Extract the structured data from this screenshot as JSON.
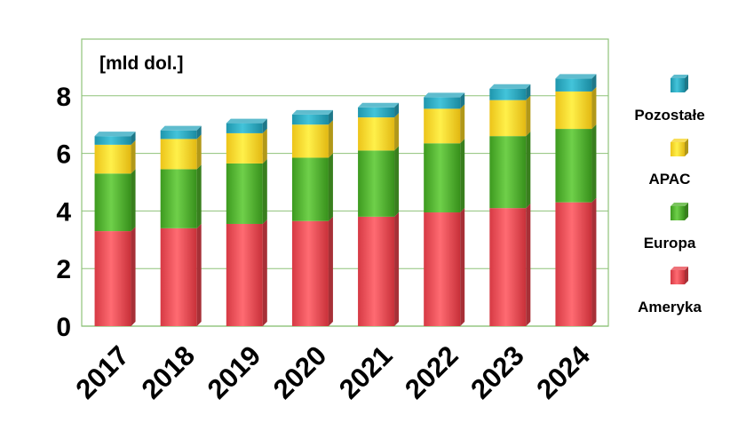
{
  "chart_data": {
    "type": "bar",
    "stacked": true,
    "unit_label": "[mld dol.]",
    "categories": [
      "2017",
      "2018",
      "2019",
      "2020",
      "2021",
      "2022",
      "2023",
      "2024"
    ],
    "series": [
      {
        "name": "Ameryka",
        "color": "#e8434c",
        "values": [
          3.3,
          3.4,
          3.55,
          3.65,
          3.8,
          3.95,
          4.1,
          4.3
        ]
      },
      {
        "name": "Europa",
        "color": "#4fb02a",
        "values": [
          2.0,
          2.05,
          2.1,
          2.2,
          2.3,
          2.4,
          2.5,
          2.55
        ]
      },
      {
        "name": "APAC",
        "color": "#f6d323",
        "values": [
          1.0,
          1.05,
          1.05,
          1.15,
          1.15,
          1.2,
          1.25,
          1.3
        ]
      },
      {
        "name": "Pozostałe",
        "color": "#2aa6be",
        "values": [
          0.3,
          0.3,
          0.35,
          0.35,
          0.35,
          0.4,
          0.4,
          0.45
        ]
      }
    ],
    "yticks": [
      "0",
      "2",
      "4",
      "6",
      "8"
    ],
    "ylim": [
      0,
      10
    ],
    "grid": true,
    "legend_position": "right"
  }
}
